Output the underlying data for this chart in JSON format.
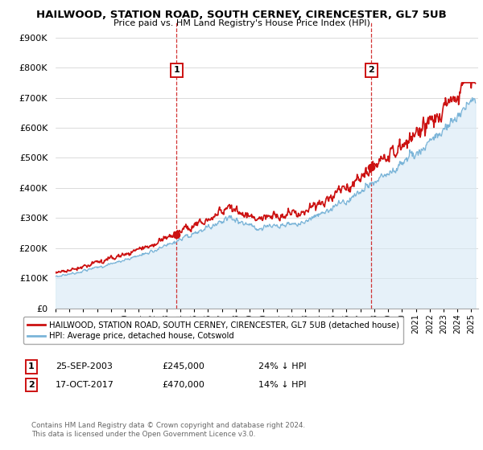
{
  "title": "HAILWOOD, STATION ROAD, SOUTH CERNEY, CIRENCESTER, GL7 5UB",
  "subtitle": "Price paid vs. HM Land Registry's House Price Index (HPI)",
  "ylim": [
    0,
    950000
  ],
  "yticks": [
    0,
    100000,
    200000,
    300000,
    400000,
    500000,
    600000,
    700000,
    800000,
    900000
  ],
  "ytick_labels": [
    "£0",
    "£100K",
    "£200K",
    "£300K",
    "£400K",
    "£500K",
    "£600K",
    "£700K",
    "£800K",
    "£900K"
  ],
  "hpi_color": "#7ab4d8",
  "hpi_fill_color": "#d6e9f5",
  "price_color": "#cc1111",
  "vline_color": "#cc1111",
  "background_color": "#ffffff",
  "grid_color": "#cccccc",
  "legend_label_red": "HAILWOOD, STATION ROAD, SOUTH CERNEY, CIRENCESTER, GL7 5UB (detached house)",
  "legend_label_blue": "HPI: Average price, detached house, Cotswold",
  "annotation1_date": "25-SEP-2003",
  "annotation1_price": "£245,000",
  "annotation1_hpi": "24% ↓ HPI",
  "annotation2_date": "17-OCT-2017",
  "annotation2_price": "£470,000",
  "annotation2_hpi": "14% ↓ HPI",
  "footnote": "Contains HM Land Registry data © Crown copyright and database right 2024.\nThis data is licensed under the Open Government Licence v3.0.",
  "sale1_year": 2003.73,
  "sale1_price": 245000,
  "sale2_year": 2017.79,
  "sale2_price": 470000,
  "xmin": 1995,
  "xmax": 2025.5
}
